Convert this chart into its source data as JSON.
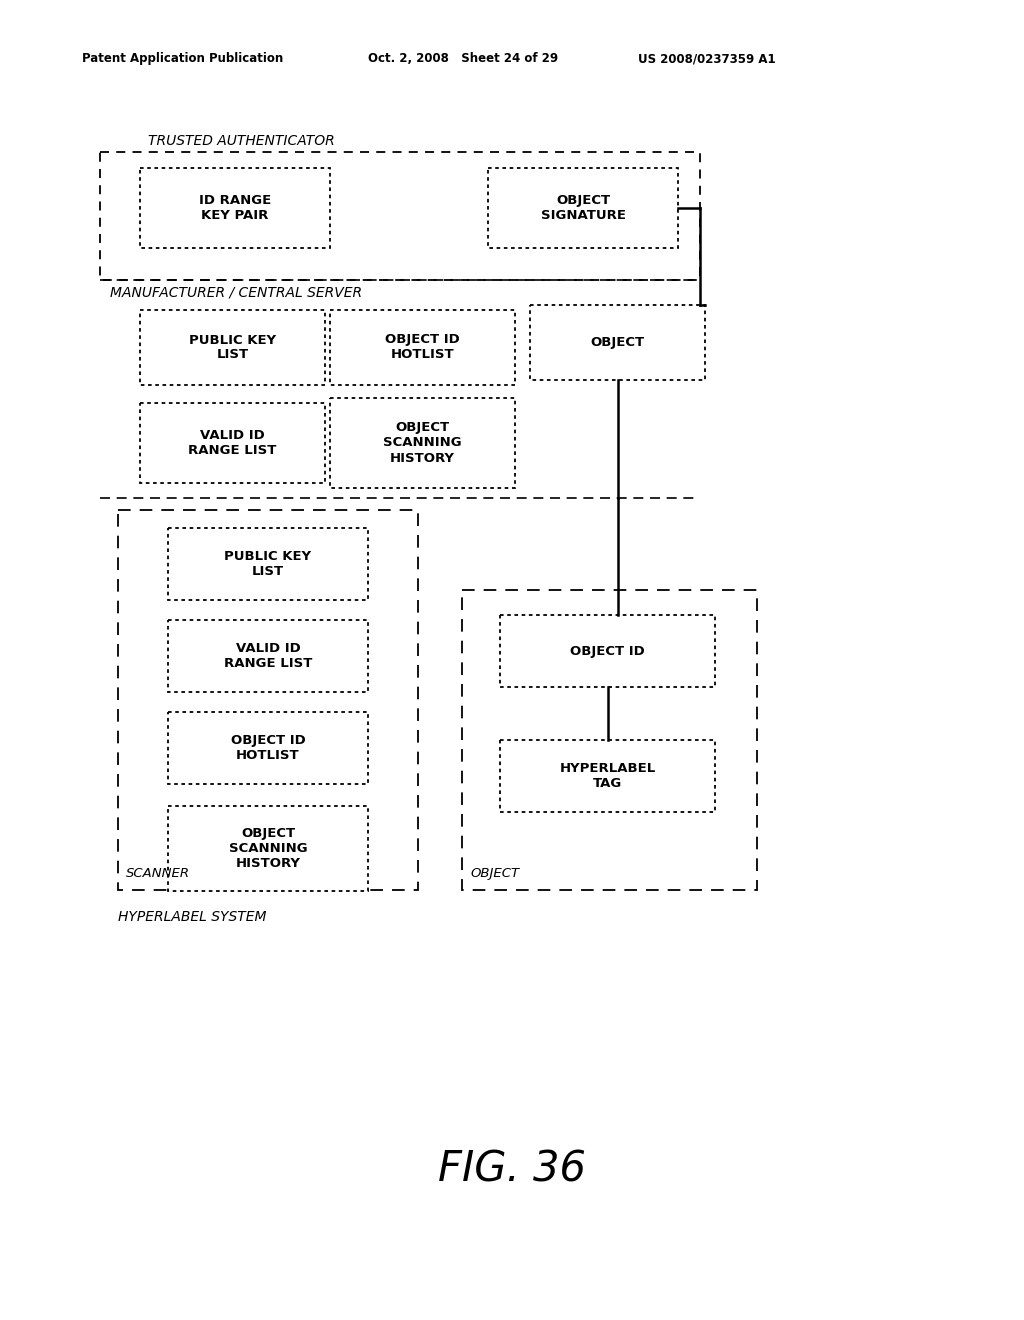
{
  "bg_color": "#ffffff",
  "header_text_left": "Patent Application Publication",
  "header_text_mid": "Oct. 2, 2008   Sheet 24 of 29",
  "header_text_right": "US 2008/0237359 A1",
  "fig_label": "FIG. 36",
  "trusted_auth_label": "TRUSTED AUTHENTICATOR",
  "mfr_label": "MANUFACTURER / CENTRAL SERVER",
  "hyperlabel_system_label": "HYPERLABEL SYSTEM",
  "scanner_label": "SCANNER",
  "object_label_bottom": "OBJECT"
}
